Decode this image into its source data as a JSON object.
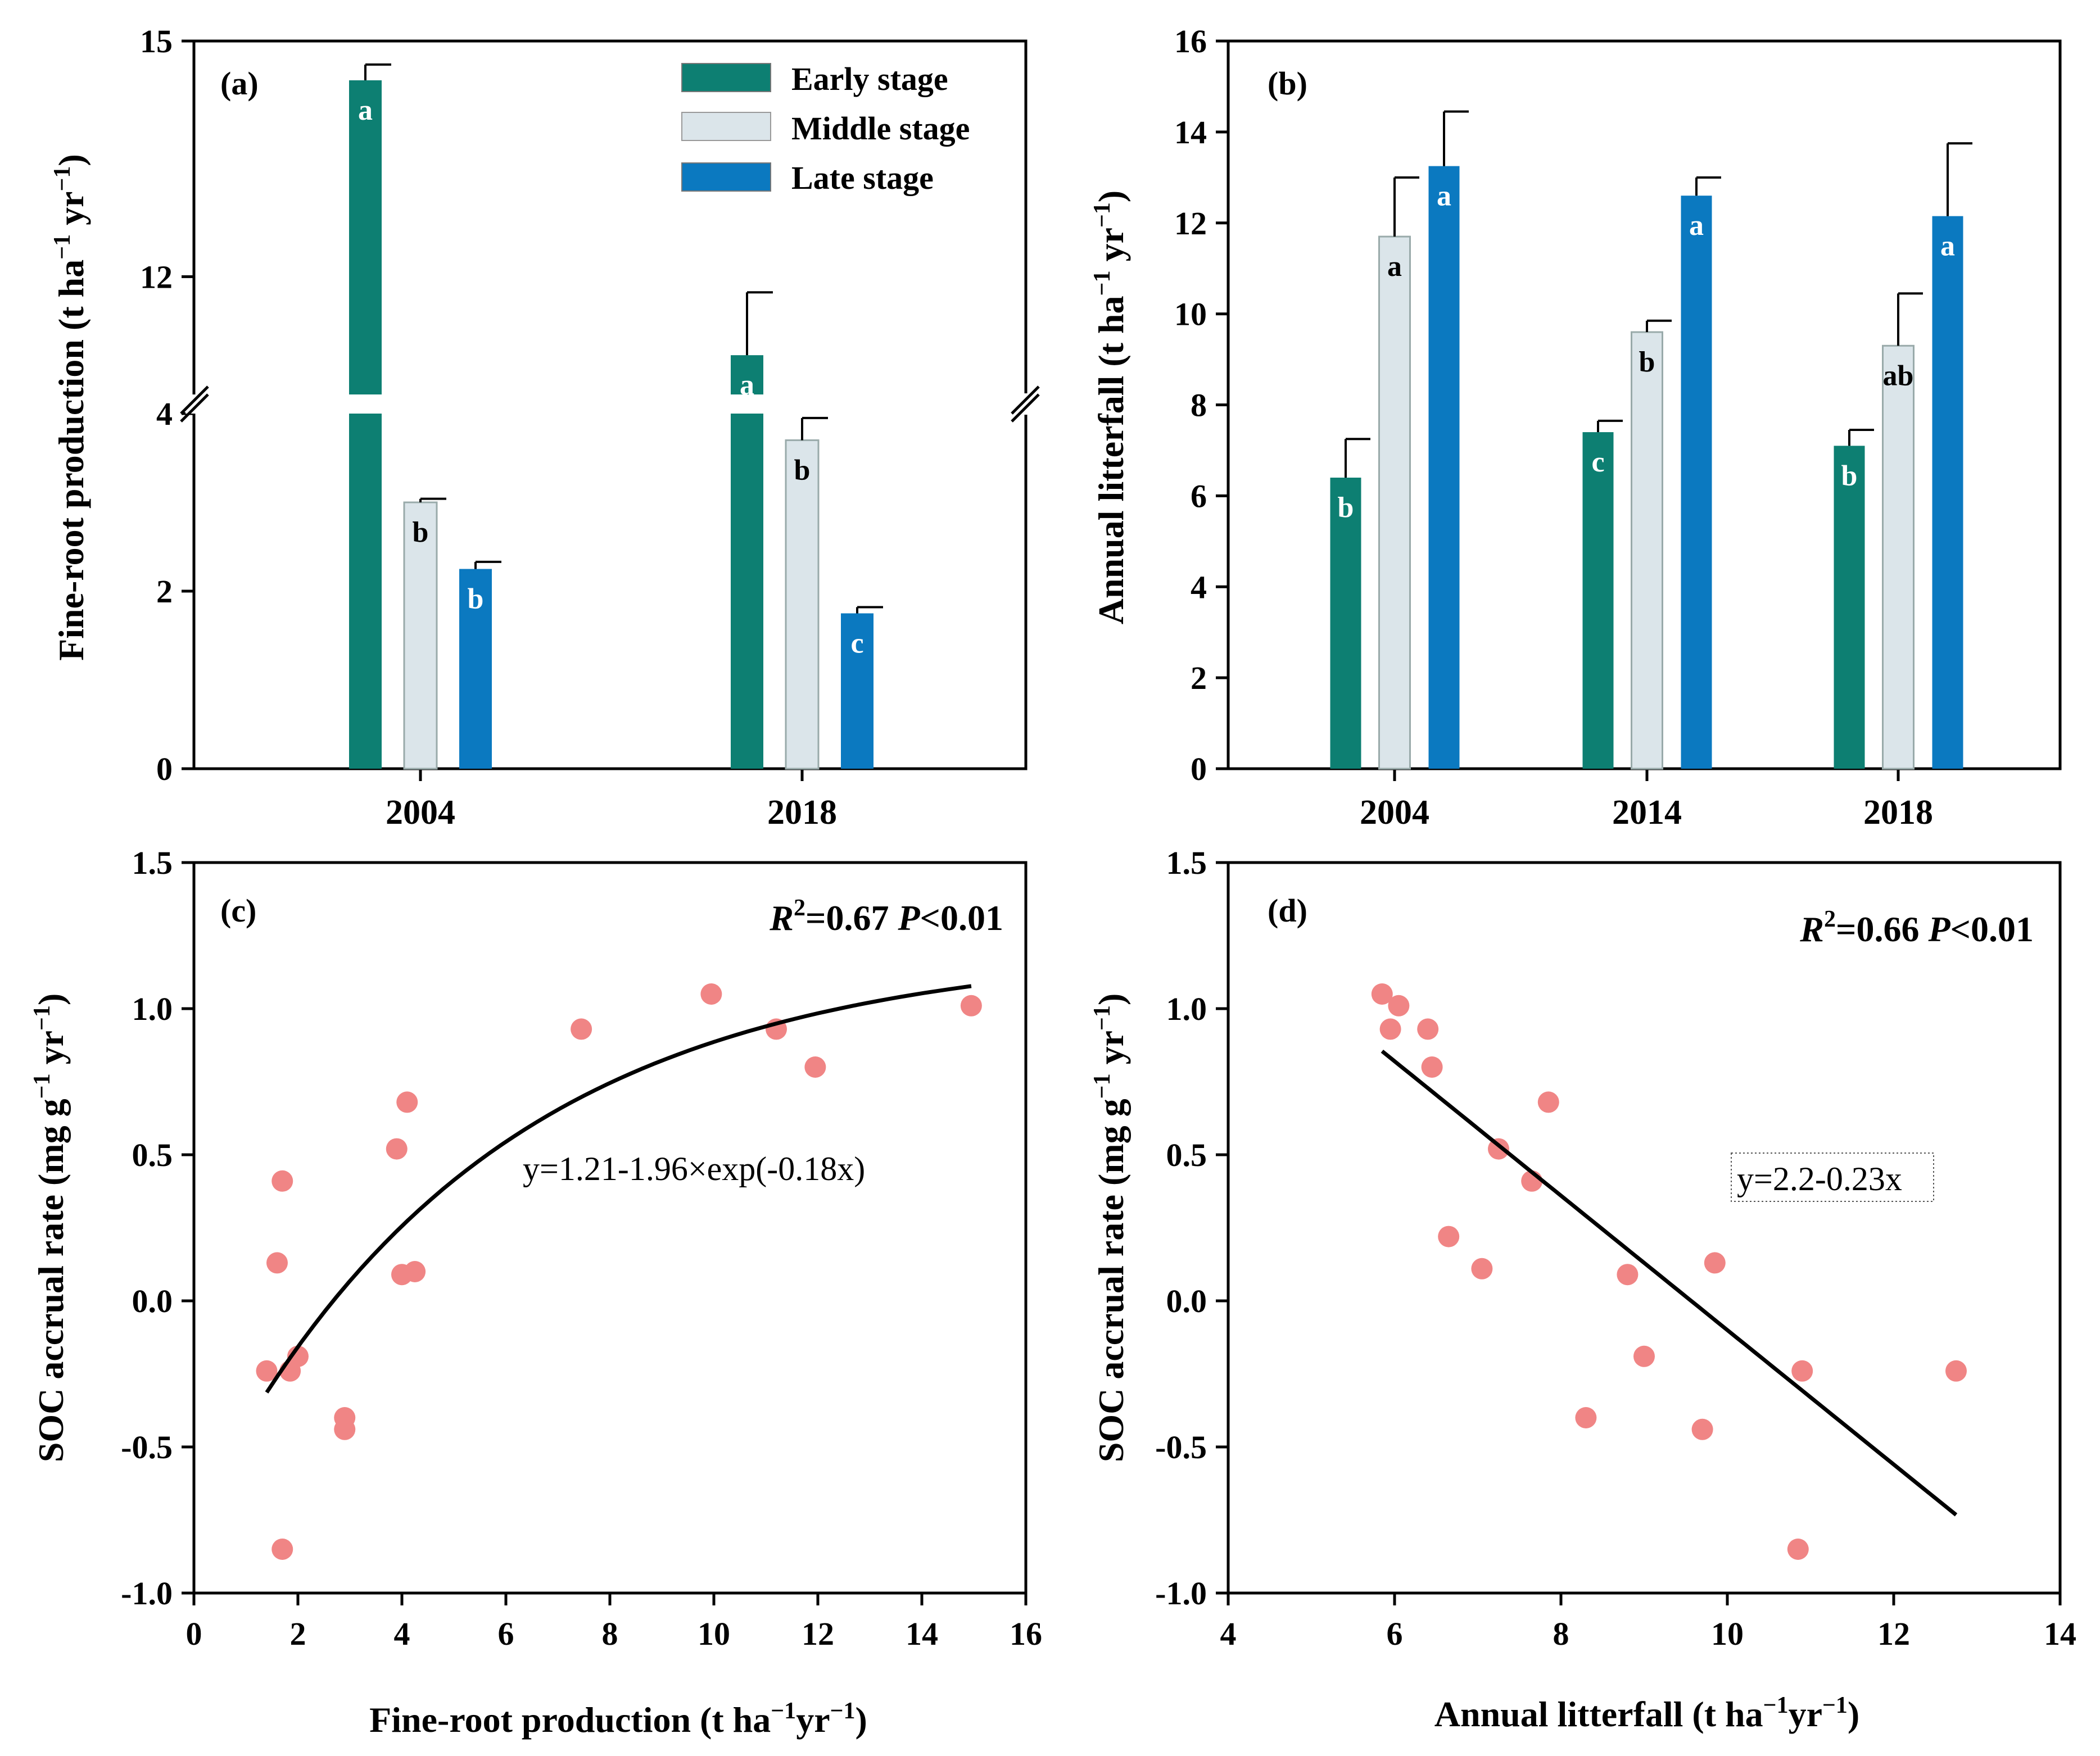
{
  "colors": {
    "early": "#0d7f72",
    "middle": "#dbe5ea",
    "late": "#0b79c0",
    "point": "#f08585",
    "fit": "#000000"
  },
  "legend": [
    {
      "key": "early",
      "label": "Early stage"
    },
    {
      "key": "middle",
      "label": "Middle stage"
    },
    {
      "key": "late",
      "label": "Late stage"
    }
  ],
  "chart_data": [
    {
      "panel": "(a)",
      "type": "bar",
      "ylabel_main": "Fine-root production (t ha",
      "ylabel_sup1": "−1",
      "ylabel_mid": " yr",
      "ylabel_sup2": "−1",
      "ylabel_end": ")",
      "axis_break": {
        "lower_range": [
          0,
          4
        ],
        "upper_range": [
          10.5,
          15
        ]
      },
      "yticks_lower": [
        0,
        2,
        4
      ],
      "yticks_upper": [
        12,
        15
      ],
      "categories": [
        "2004",
        "2018"
      ],
      "series": [
        {
          "name": "Early stage",
          "key": "early",
          "values": [
            14.5,
            11.0
          ],
          "errors": [
            0.2,
            0.8
          ],
          "letters": [
            "a",
            "a"
          ]
        },
        {
          "name": "Middle stage",
          "key": "middle",
          "values": [
            3.0,
            3.7
          ],
          "errors": [
            0.04,
            0.25
          ],
          "letters": [
            "b",
            "b"
          ]
        },
        {
          "name": "Late stage",
          "key": "late",
          "values": [
            2.25,
            1.75
          ],
          "errors": [
            0.08,
            0.07
          ],
          "letters": [
            "b",
            "c"
          ]
        }
      ]
    },
    {
      "panel": "(b)",
      "type": "bar",
      "ylabel_main": "Annual litterfall (t ha",
      "ylabel_sup1": "−1",
      "ylabel_mid": " yr",
      "ylabel_sup2": "−1",
      "ylabel_end": ")",
      "ylim": [
        0,
        16
      ],
      "yticks": [
        0,
        2,
        4,
        6,
        8,
        10,
        12,
        14,
        16
      ],
      "categories": [
        "2004",
        "2014",
        "2018"
      ],
      "series": [
        {
          "name": "Early stage",
          "key": "early",
          "values": [
            6.4,
            7.4,
            7.1
          ],
          "errors": [
            0.85,
            0.25,
            0.35
          ],
          "letters": [
            "b",
            "c",
            "b"
          ]
        },
        {
          "name": "Middle stage",
          "key": "middle",
          "values": [
            11.7,
            9.6,
            9.3
          ],
          "errors": [
            1.3,
            0.25,
            1.15
          ],
          "letters": [
            "a",
            "b",
            "ab"
          ]
        },
        {
          "name": "Late stage",
          "key": "late",
          "values": [
            13.25,
            12.6,
            12.15
          ],
          "errors": [
            1.2,
            0.4,
            1.6
          ],
          "letters": [
            "a",
            "a",
            "a"
          ]
        }
      ]
    },
    {
      "panel": "(c)",
      "type": "scatter",
      "xlabel_main": "Fine-root production (t ha",
      "xlabel_sup1": "−1",
      "xlabel_mid": "yr",
      "xlabel_sup2": "−1",
      "xlabel_end": ")",
      "ylabel_main": "SOC accrual rate (mg g",
      "ylabel_sup1": "−1",
      "ylabel_mid": " yr",
      "ylabel_sup2": "−1",
      "ylabel_end": ")",
      "xlim": [
        0,
        16
      ],
      "ylim": [
        -1.0,
        1.5
      ],
      "xticks": [
        0,
        2,
        4,
        6,
        8,
        10,
        12,
        14,
        16
      ],
      "yticks": [
        "-1.0",
        "-0.5",
        "0.0",
        "0.5",
        "1.0",
        "1.5"
      ],
      "points": [
        {
          "x": 1.4,
          "y": -0.24
        },
        {
          "x": 1.6,
          "y": 0.13
        },
        {
          "x": 1.7,
          "y": 0.41
        },
        {
          "x": 1.7,
          "y": -0.85
        },
        {
          "x": 1.85,
          "y": -0.24
        },
        {
          "x": 2.0,
          "y": -0.19
        },
        {
          "x": 2.9,
          "y": -0.4
        },
        {
          "x": 2.9,
          "y": -0.44
        },
        {
          "x": 3.9,
          "y": 0.52
        },
        {
          "x": 4.0,
          "y": 0.09
        },
        {
          "x": 4.1,
          "y": 0.68
        },
        {
          "x": 4.25,
          "y": 0.1
        },
        {
          "x": 7.45,
          "y": 0.93
        },
        {
          "x": 9.95,
          "y": 1.05
        },
        {
          "x": 11.2,
          "y": 0.93
        },
        {
          "x": 11.95,
          "y": 0.8
        },
        {
          "x": 14.95,
          "y": 1.01
        }
      ],
      "fit": {
        "type": "exponential",
        "a": 1.21,
        "b": 1.96,
        "k": -0.18,
        "x_range": [
          1.4,
          14.95
        ]
      },
      "stat_r": "R",
      "stat_sup": "2",
      "stat_val": "=0.67 ",
      "stat_p": "P",
      "stat_pval": "<0.01",
      "equation": "y=1.21-1.96×exp(-0.18x)"
    },
    {
      "panel": "(d)",
      "type": "scatter",
      "xlabel_main": "Annual litterfall (t ha",
      "xlabel_sup1": "−1",
      "xlabel_mid": "yr",
      "xlabel_sup2": "−1",
      "xlabel_end": ")",
      "ylabel_main": "SOC accrual rate (mg g",
      "ylabel_sup1": "−1",
      "ylabel_mid": " yr",
      "ylabel_sup2": "−1",
      "ylabel_end": ")",
      "xlim": [
        4,
        14
      ],
      "ylim": [
        -1.0,
        1.5
      ],
      "xticks": [
        4,
        6,
        8,
        10,
        12,
        14
      ],
      "yticks": [
        "-1.0",
        "-0.5",
        "0.0",
        "0.5",
        "1.0",
        "1.5"
      ],
      "points": [
        {
          "x": 5.85,
          "y": 1.05
        },
        {
          "x": 5.95,
          "y": 0.93
        },
        {
          "x": 6.05,
          "y": 1.01
        },
        {
          "x": 6.4,
          "y": 0.93
        },
        {
          "x": 6.45,
          "y": 0.8
        },
        {
          "x": 6.65,
          "y": 0.22
        },
        {
          "x": 7.05,
          "y": 0.11
        },
        {
          "x": 7.25,
          "y": 0.52
        },
        {
          "x": 7.65,
          "y": 0.41
        },
        {
          "x": 7.85,
          "y": 0.68
        },
        {
          "x": 8.3,
          "y": -0.4
        },
        {
          "x": 8.8,
          "y": 0.09
        },
        {
          "x": 9.0,
          "y": -0.19
        },
        {
          "x": 9.7,
          "y": -0.44
        },
        {
          "x": 9.85,
          "y": 0.13
        },
        {
          "x": 10.85,
          "y": -0.85
        },
        {
          "x": 10.9,
          "y": -0.24
        },
        {
          "x": 12.75,
          "y": -0.24
        }
      ],
      "fit": {
        "type": "linear",
        "a": 2.2,
        "b": -0.23,
        "x_range": [
          5.85,
          12.75
        ]
      },
      "stat_r": "R",
      "stat_sup": "2",
      "stat_val": "=0.66 ",
      "stat_p": "P",
      "stat_pval": "<0.01",
      "equation": "y=2.2-0.23x"
    }
  ]
}
